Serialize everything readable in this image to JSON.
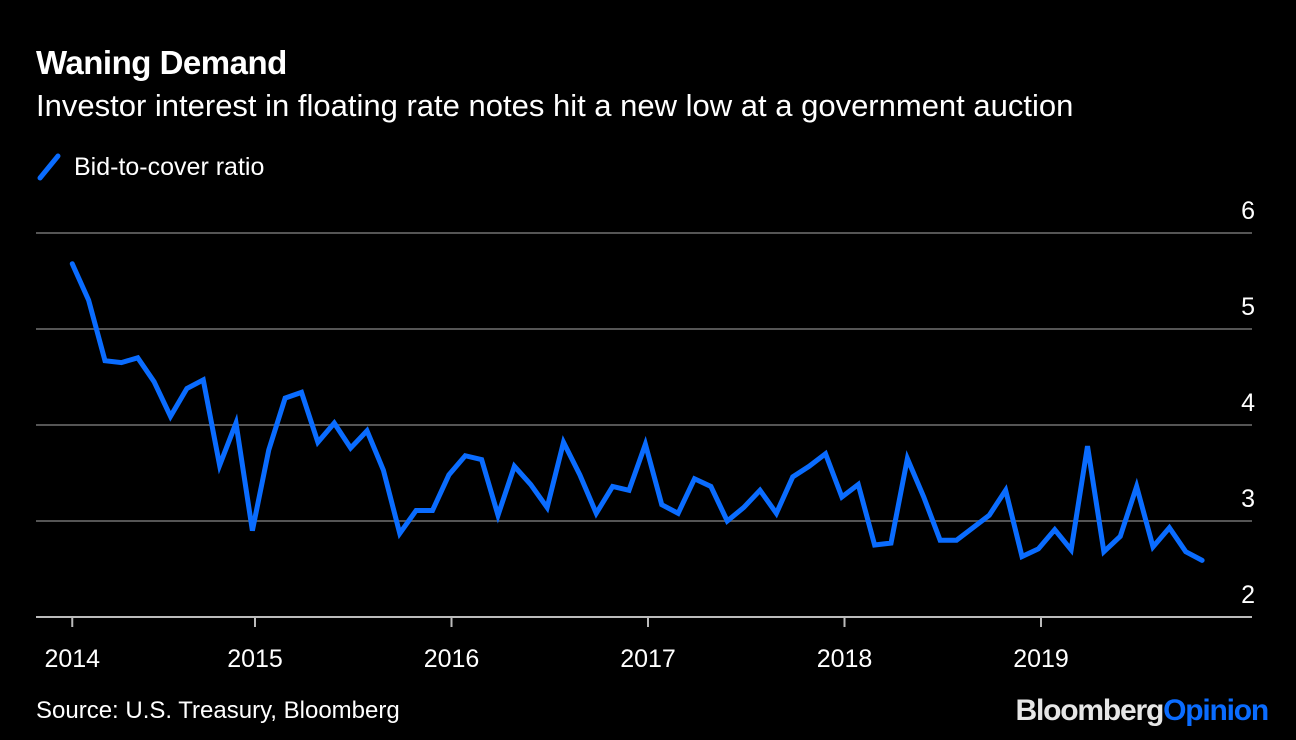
{
  "header": {
    "title": "Waning Demand",
    "subtitle": "Investor interest in floating rate notes hit a new low at a government auction"
  },
  "footer": {
    "source": "Source: U.S. Treasury, Bloomberg",
    "logo_part1": "Bloomberg",
    "logo_part2": "Opinion"
  },
  "colors": {
    "background": "#000000",
    "line": "#0a6cff",
    "grid": "#555555",
    "text": "#ffffff"
  },
  "chart_data": {
    "type": "line",
    "title": "Waning Demand",
    "subtitle": "Investor interest in floating rate notes hit a new low at a government auction",
    "xlabel": "",
    "ylabel": "",
    "ylim": [
      2,
      6
    ],
    "yticks": [
      "2",
      "3",
      "4",
      "5",
      "6"
    ],
    "xticks": [
      "2014",
      "2015",
      "2016",
      "2017",
      "2018",
      "2019"
    ],
    "grid": true,
    "y_axis_side": "right",
    "legend": "top-left",
    "series": [
      {
        "name": "Bid-to-cover ratio",
        "start": "2014-01",
        "frequency": "monthly",
        "values": [
          5.68,
          5.3,
          4.67,
          4.65,
          4.7,
          4.45,
          4.09,
          4.38,
          4.47,
          3.58,
          4.02,
          2.9,
          3.74,
          4.28,
          4.34,
          3.82,
          4.02,
          3.76,
          3.94,
          3.53,
          2.87,
          3.11,
          3.11,
          3.48,
          3.68,
          3.64,
          3.06,
          3.57,
          3.38,
          3.14,
          3.82,
          3.48,
          3.08,
          3.36,
          3.32,
          3.8,
          3.17,
          3.08,
          3.44,
          3.36,
          3.0,
          3.14,
          3.32,
          3.08,
          3.46,
          3.57,
          3.7,
          3.25,
          3.38,
          2.75,
          2.77,
          3.65,
          3.25,
          2.8,
          2.8,
          2.93,
          3.06,
          3.32,
          2.63,
          2.71,
          2.91,
          2.7,
          3.78,
          2.68,
          2.84,
          3.36,
          2.73,
          2.93,
          2.68,
          2.59
        ]
      }
    ]
  }
}
